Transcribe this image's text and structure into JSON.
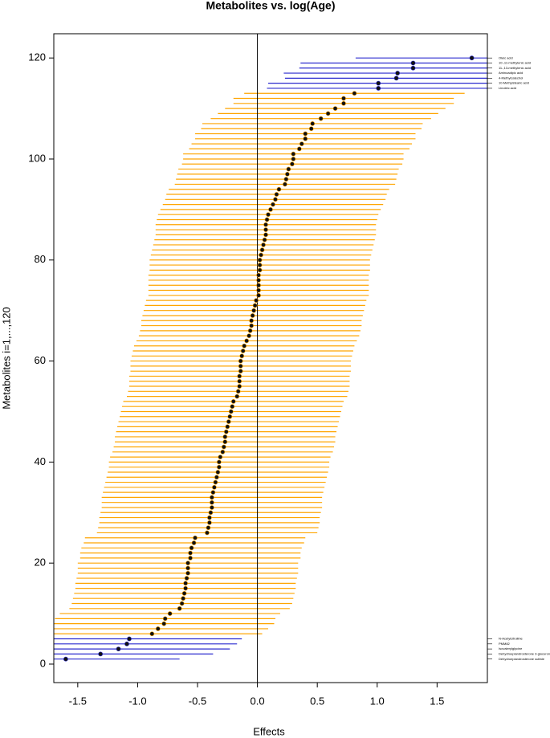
{
  "chart_data": {
    "type": "forest",
    "title": "Metabolites vs. log(Age)",
    "x_label": "Effects",
    "y_label": "Metabolites i=1,...,120",
    "color": "#ffa500",
    "highlight_color": "#2b2bcf",
    "point_color": "#111111",
    "zero_line": true,
    "xlim": [
      -1.7,
      1.92
    ],
    "ylim": [
      -3.66,
      124.8
    ],
    "xticks": [
      {
        "value": -1.5,
        "label": "-1.5"
      },
      {
        "value": -1,
        "label": "-1.0"
      },
      {
        "value": -0.5,
        "label": "-0.5"
      },
      {
        "value": 0,
        "label": "0.0"
      },
      {
        "value": 0.5,
        "label": "0.5"
      },
      {
        "value": 1,
        "label": "1.0"
      },
      {
        "value": 1.5,
        "label": "1.5"
      }
    ],
    "yticks": [
      0,
      20,
      40,
      60,
      80,
      100,
      120
    ],
    "y": [
      1,
      2,
      3,
      4,
      5,
      6,
      7,
      8,
      9,
      10,
      11,
      12,
      13,
      14,
      15,
      16,
      17,
      18,
      19,
      20,
      21,
      22,
      23,
      24,
      25,
      26,
      27,
      28,
      29,
      30,
      31,
      32,
      33,
      34,
      35,
      36,
      37,
      38,
      39,
      40,
      41,
      42,
      43,
      44,
      45,
      46,
      47,
      48,
      49,
      50,
      51,
      52,
      53,
      54,
      55,
      56,
      57,
      58,
      59,
      60,
      61,
      62,
      63,
      64,
      65,
      66,
      67,
      68,
      69,
      70,
      71,
      72,
      73,
      74,
      75,
      76,
      77,
      78,
      79,
      80,
      81,
      82,
      83,
      84,
      85,
      86,
      87,
      88,
      89,
      90,
      91,
      92,
      93,
      94,
      95,
      96,
      97,
      98,
      99,
      100,
      101,
      102,
      103,
      104,
      105,
      106,
      107,
      108,
      109,
      110,
      111,
      112,
      113,
      114,
      115,
      116,
      117,
      118,
      119,
      120
    ],
    "values": [
      -1.6,
      -1.31,
      -1.16,
      -1.09,
      -1.07,
      -0.88,
      -0.83,
      -0.78,
      -0.77,
      -0.73,
      -0.65,
      -0.63,
      -0.62,
      -0.61,
      -0.6,
      -0.6,
      -0.59,
      -0.58,
      -0.58,
      -0.58,
      -0.56,
      -0.56,
      -0.55,
      -0.53,
      -0.52,
      -0.42,
      -0.41,
      -0.4,
      -0.4,
      -0.39,
      -0.38,
      -0.38,
      -0.38,
      -0.37,
      -0.36,
      -0.35,
      -0.34,
      -0.33,
      -0.32,
      -0.32,
      -0.31,
      -0.29,
      -0.28,
      -0.27,
      -0.27,
      -0.26,
      -0.25,
      -0.24,
      -0.23,
      -0.22,
      -0.21,
      -0.2,
      -0.17,
      -0.16,
      -0.15,
      -0.15,
      -0.15,
      -0.14,
      -0.14,
      -0.14,
      -0.13,
      -0.12,
      -0.11,
      -0.09,
      -0.07,
      -0.06,
      -0.05,
      -0.05,
      -0.04,
      -0.03,
      -0.02,
      -0.01,
      0.01,
      0.01,
      0.01,
      0.01,
      0.01,
      0.02,
      0.02,
      0.02,
      0.03,
      0.04,
      0.05,
      0.06,
      0.07,
      0.07,
      0.07,
      0.08,
      0.09,
      0.11,
      0.13,
      0.15,
      0.16,
      0.18,
      0.23,
      0.24,
      0.25,
      0.26,
      0.29,
      0.3,
      0.3,
      0.35,
      0.37,
      0.4,
      0.4,
      0.45,
      0.46,
      0.53,
      0.59,
      0.65,
      0.72,
      0.72,
      0.81,
      1.01,
      1.01,
      1.16,
      1.17,
      1.3,
      1.3,
      1.79
    ],
    "errors": [
      0.95,
      0.94,
      0.93,
      0.92,
      0.94,
      0.92,
      0.92,
      0.92,
      0.92,
      0.92,
      0.92,
      0.92,
      0.92,
      0.92,
      0.92,
      0.92,
      0.92,
      0.92,
      0.92,
      0.92,
      0.92,
      0.92,
      0.92,
      0.92,
      0.92,
      0.92,
      0.92,
      0.92,
      0.92,
      0.92,
      0.92,
      0.92,
      0.92,
      0.92,
      0.92,
      0.92,
      0.92,
      0.92,
      0.92,
      0.92,
      0.92,
      0.92,
      0.92,
      0.92,
      0.92,
      0.92,
      0.92,
      0.92,
      0.92,
      0.92,
      0.92,
      0.92,
      0.92,
      0.92,
      0.92,
      0.92,
      0.92,
      0.92,
      0.92,
      0.92,
      0.92,
      0.92,
      0.92,
      0.92,
      0.92,
      0.92,
      0.92,
      0.92,
      0.92,
      0.92,
      0.92,
      0.92,
      0.92,
      0.92,
      0.92,
      0.92,
      0.92,
      0.92,
      0.92,
      0.92,
      0.92,
      0.92,
      0.92,
      0.92,
      0.92,
      0.92,
      0.92,
      0.92,
      0.92,
      0.92,
      0.92,
      0.92,
      0.92,
      0.92,
      0.92,
      0.92,
      0.92,
      0.92,
      0.92,
      0.92,
      0.92,
      0.92,
      0.92,
      0.92,
      0.92,
      0.92,
      0.92,
      0.92,
      0.92,
      0.92,
      0.92,
      0.92,
      0.92,
      0.93,
      0.92,
      0.93,
      0.95,
      0.95,
      0.94,
      0.97
    ],
    "labels": [
      "Dehydroepiandrosterone sulfate",
      "Dehydroepiandrosterone 3-glucuronide",
      "Isovalerylglycine",
      "PMM82",
      "N-Acetylcitrulline",
      null,
      null,
      null,
      null,
      null,
      null,
      null,
      null,
      null,
      null,
      null,
      null,
      null,
      null,
      null,
      null,
      null,
      null,
      null,
      null,
      null,
      null,
      null,
      null,
      null,
      null,
      null,
      null,
      null,
      null,
      null,
      null,
      null,
      null,
      null,
      null,
      null,
      null,
      null,
      null,
      null,
      null,
      null,
      null,
      null,
      null,
      null,
      null,
      null,
      null,
      null,
      null,
      null,
      null,
      null,
      null,
      null,
      null,
      null,
      null,
      null,
      null,
      null,
      null,
      null,
      null,
      null,
      null,
      null,
      null,
      null,
      null,
      null,
      null,
      null,
      null,
      null,
      null,
      null,
      null,
      null,
      null,
      null,
      null,
      null,
      null,
      null,
      null,
      null,
      null,
      null,
      null,
      null,
      null,
      null,
      null,
      null,
      null,
      null,
      null,
      null,
      null,
      null,
      null,
      null,
      null,
      null,
      null,
      "Linoleic acid",
      "10-Methylstearic acid",
      "4-Methylcatechol",
      "Aminoadipic acid",
      "11-,13-methylenic acid",
      "10-,11-methylenic acid",
      "Oleic acid"
    ]
  }
}
